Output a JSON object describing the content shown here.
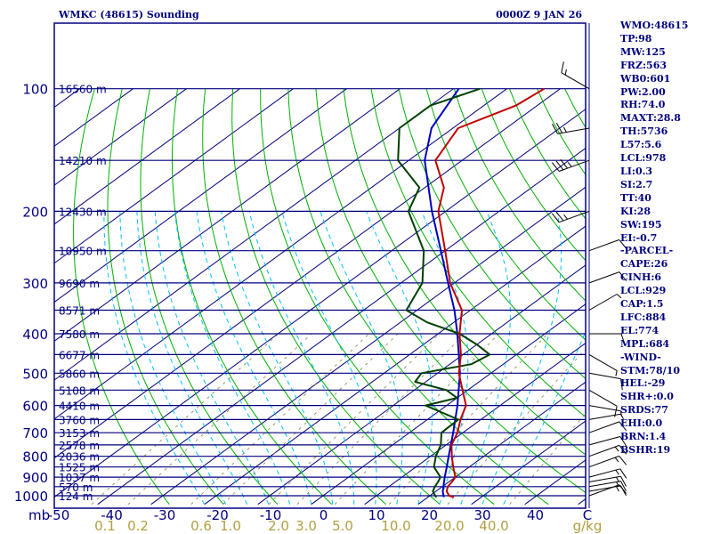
{
  "header": {
    "station": "WMKC (48615) Sounding",
    "time": "0000Z  9 JAN 26"
  },
  "colors": {
    "background": "#ffffff",
    "frame": "#00007f",
    "isobar": "#00007f",
    "isotherm": "#00007f",
    "dry_adiabat": "#00b000",
    "moist_adiabat": "#00bfff",
    "mixing_ratio": "#808040",
    "temperature": "#c00000",
    "dewpoint": "#004000",
    "parcel": "#0000c0",
    "text": "#00007f",
    "mixing_ratio_text": "#b0a040"
  },
  "chart_data": {
    "type": "skew-t",
    "ylabel": "mb",
    "xlabel": "C",
    "mixing_ratio_unit": "g/kg",
    "pressure_ticks": [
      "100",
      "200",
      "300",
      "400",
      "500",
      "600",
      "700",
      "800",
      "900",
      "1000"
    ],
    "temperature_ticks": [
      "-50",
      "-40",
      "-30",
      "-20",
      "-10",
      "0",
      "10",
      "20",
      "30",
      "40"
    ],
    "mixing_ratio_ticks": [
      "0.1",
      "0.2",
      "0.6",
      "1.0",
      "2.0",
      "3.0",
      "5.0",
      "10.0",
      "20.0",
      "40.0"
    ],
    "isobars": [
      {
        "p": 100,
        "height": "16560 m"
      },
      {
        "p": 150,
        "height": "14210 m"
      },
      {
        "p": 200,
        "height": "12430 m"
      },
      {
        "p": 250,
        "height": "10950 m"
      },
      {
        "p": 300,
        "height": "9690 m"
      },
      {
        "p": 350,
        "height": "8571 m"
      },
      {
        "p": 400,
        "height": "7580 m"
      },
      {
        "p": 450,
        "height": "6677 m"
      },
      {
        "p": 500,
        "height": "5860 m"
      },
      {
        "p": 550,
        "height": "5108 m"
      },
      {
        "p": 600,
        "height": "4410 m"
      },
      {
        "p": 650,
        "height": "3760 m"
      },
      {
        "p": 700,
        "height": "3153 m"
      },
      {
        "p": 750,
        "height": "2578 m"
      },
      {
        "p": 800,
        "height": "2036 m"
      },
      {
        "p": 850,
        "height": "1525 m"
      },
      {
        "p": 900,
        "height": "1037 m"
      },
      {
        "p": 950,
        "height": "570 m"
      },
      {
        "p": 1000,
        "height": "124 m"
      }
    ],
    "temperature_profile": [
      [
        1008,
        24.8
      ],
      [
        1000,
        23.6
      ],
      [
        975,
        22.0
      ],
      [
        950,
        21.0
      ],
      [
        925,
        20.6
      ],
      [
        900,
        20.0
      ],
      [
        850,
        17.0
      ],
      [
        800,
        14.0
      ],
      [
        750,
        11.0
      ],
      [
        700,
        9.0
      ],
      [
        650,
        6.2
      ],
      [
        600,
        3.6
      ],
      [
        550,
        -1.0
      ],
      [
        500,
        -6.0
      ],
      [
        450,
        -10.4
      ],
      [
        400,
        -16.0
      ],
      [
        350,
        -21.6
      ],
      [
        300,
        -30.8
      ],
      [
        250,
        -40.0
      ],
      [
        200,
        -51.4
      ],
      [
        175,
        -56.4
      ],
      [
        150,
        -65.0
      ],
      [
        125,
        -69.0
      ],
      [
        110,
        -64.0
      ],
      [
        100,
        -63.0
      ]
    ],
    "dewpoint_profile": [
      [
        1008,
        21.6
      ],
      [
        1000,
        21.0
      ],
      [
        975,
        19.4
      ],
      [
        950,
        18.6
      ],
      [
        925,
        18.0
      ],
      [
        900,
        17.2
      ],
      [
        850,
        13.4
      ],
      [
        800,
        11.0
      ],
      [
        750,
        9.0
      ],
      [
        700,
        6.0
      ],
      [
        650,
        5.8
      ],
      [
        600,
        -4.0
      ],
      [
        575,
        0.0
      ],
      [
        550,
        -4.0
      ],
      [
        525,
        -12.0
      ],
      [
        500,
        -13.0
      ],
      [
        475,
        -6.0
      ],
      [
        450,
        -5.0
      ],
      [
        425,
        -10.0
      ],
      [
        400,
        -16.0
      ],
      [
        375,
        -25.0
      ],
      [
        350,
        -32.0
      ],
      [
        300,
        -36.0
      ],
      [
        250,
        -44.0
      ],
      [
        200,
        -57.0
      ],
      [
        175,
        -61.0
      ],
      [
        150,
        -72.0
      ],
      [
        125,
        -80.0
      ],
      [
        110,
        -80.0
      ],
      [
        100,
        -75.0
      ]
    ],
    "parcel_profile": [
      [
        1008,
        23.0
      ],
      [
        978,
        21.4
      ],
      [
        950,
        20.2
      ],
      [
        900,
        18.0
      ],
      [
        850,
        15.8
      ],
      [
        800,
        13.4
      ],
      [
        700,
        8.2
      ],
      [
        600,
        2.0
      ],
      [
        500,
        -5.8
      ],
      [
        450,
        -10.8
      ],
      [
        400,
        -16.4
      ],
      [
        350,
        -23.0
      ],
      [
        300,
        -31.2
      ],
      [
        250,
        -40.8
      ],
      [
        200,
        -52.6
      ],
      [
        150,
        -67.0
      ],
      [
        125,
        -74.0
      ],
      [
        100,
        -79.0
      ]
    ],
    "winds": [
      {
        "p": 1000,
        "dir": 70,
        "spd": 10
      },
      {
        "p": 975,
        "dir": 80,
        "spd": 15
      },
      {
        "p": 950,
        "dir": 80,
        "spd": 15
      },
      {
        "p": 925,
        "dir": 80,
        "spd": 15
      },
      {
        "p": 900,
        "dir": 75,
        "spd": 15
      },
      {
        "p": 850,
        "dir": 70,
        "spd": 15
      },
      {
        "p": 800,
        "dir": 70,
        "spd": 15
      },
      {
        "p": 750,
        "dir": 75,
        "spd": 10
      },
      {
        "p": 700,
        "dir": 70,
        "spd": 10
      },
      {
        "p": 650,
        "dir": 80,
        "spd": 5
      },
      {
        "p": 600,
        "dir": 100,
        "spd": 5
      },
      {
        "p": 550,
        "dir": 120,
        "spd": 10
      },
      {
        "p": 500,
        "dir": 100,
        "spd": 10
      },
      {
        "p": 450,
        "dir": 120,
        "spd": 5
      },
      {
        "p": 400,
        "dir": 90,
        "spd": 10
      },
      {
        "p": 350,
        "dir": 60,
        "spd": 5
      },
      {
        "p": 300,
        "dir": 70,
        "spd": 10
      },
      {
        "p": 250,
        "dir": 70,
        "spd": 10
      },
      {
        "p": 200,
        "dir": 250,
        "spd": 25
      },
      {
        "p": 150,
        "dir": 250,
        "spd": 35
      },
      {
        "p": 125,
        "dir": 260,
        "spd": 25
      },
      {
        "p": 100,
        "dir": 300,
        "spd": 15
      }
    ]
  },
  "indices": [
    "WMO:48615",
    "TP:98",
    "MW:125",
    "FRZ:563",
    "WB0:601",
    "PW:2.00",
    "RH:74.0",
    "MAXT:28.8",
    "TH:5736",
    "L57:5.6",
    "LCL:978",
    "LI:0.3",
    "SI:2.7",
    "TT:40",
    "KI:28",
    "SW:195",
    "EI:-0.7",
    "-PARCEL-",
    "CAPE:26",
    "CINH:6",
    "LCL:929",
    "CAP:1.5",
    "LFC:884",
    "EL:774",
    "MPL:684",
    "-WIND-",
    "STM:78/10",
    "HEL:-29",
    "SHR+:0.0",
    "SRDS:77",
    "EHI:0.0",
    "BRN:1.4",
    "BSHR:19"
  ]
}
